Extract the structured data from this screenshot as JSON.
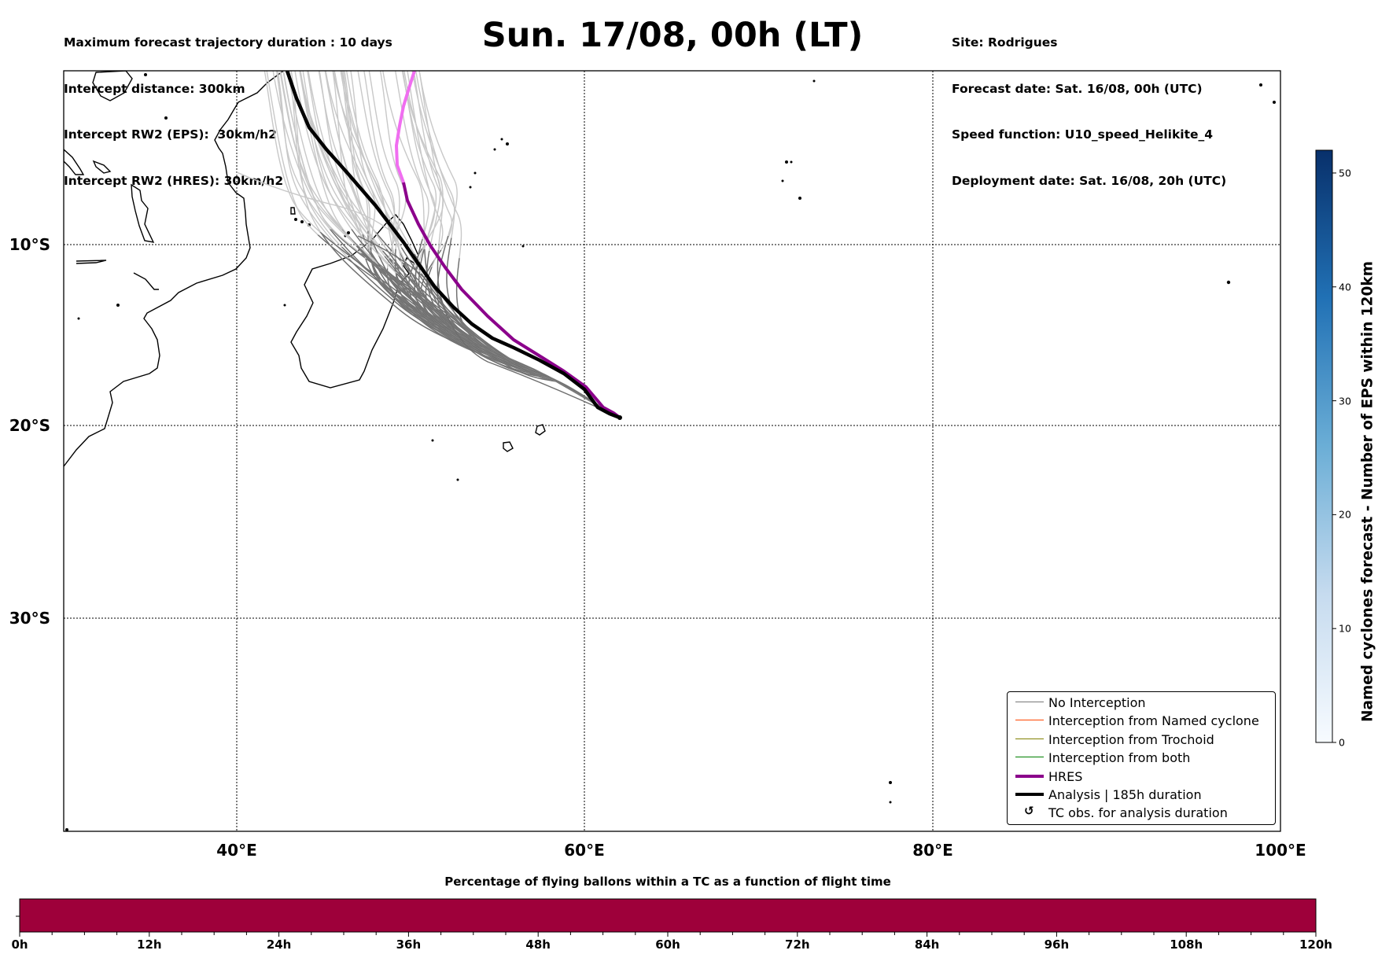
{
  "header": {
    "left": [
      "Maximum forecast trajectory duration : 10 days",
      "Intercept distance: 300km",
      "Intercept RW2 (EPS):  30km/h2",
      "Intercept RW2 (HRES): 30km/h2"
    ],
    "title": "Sun. 17/08, 00h (LT)",
    "right": [
      "Site: Rodrigues",
      "Forecast date: Sat. 16/08, 00h (UTC)",
      "Speed function: U10_speed_Helikite_4",
      "Deployment date: Sat. 16/08, 20h (UTC)"
    ]
  },
  "map": {
    "lat_labels": [
      "10°S",
      "20°S",
      "30°S"
    ],
    "lon_labels": [
      "40°E",
      "60°E",
      "80°E",
      "100°E"
    ]
  },
  "legend": [
    {
      "label": "No Interception",
      "color": "#777777",
      "kind": "thin"
    },
    {
      "label": "Interception from Named cyclone",
      "color": "#ff4500",
      "kind": "thin"
    },
    {
      "label": "Interception from Trochoid",
      "color": "#808000",
      "kind": "thin"
    },
    {
      "label": "Interception from both",
      "color": "#008000",
      "kind": "thin"
    },
    {
      "label": "HRES",
      "color": "#8b008b",
      "kind": "thick"
    },
    {
      "label": "Analysis | 185h duration",
      "color": "#000000",
      "kind": "thick"
    },
    {
      "label": "TC obs. for analysis duration",
      "color": "#000000",
      "kind": "symbol",
      "symbol": "↺"
    }
  ],
  "colorbar": {
    "label": "Named cyclones forecast - Number of EPS within 120km",
    "ticks": [
      "0",
      "10",
      "20",
      "30",
      "40",
      "50"
    ],
    "range": [
      0,
      52
    ],
    "color_low": "#f7fbff",
    "color_high": "#08306b"
  },
  "flight_bar": {
    "title": "Percentage of flying ballons within a TC as a function of flight time",
    "ticks": [
      "0h",
      "12h",
      "24h",
      "36h",
      "48h",
      "60h",
      "72h",
      "84h",
      "96h",
      "108h",
      "120h"
    ],
    "fill_color": "#9e003a"
  },
  "colors": {
    "hres_early": "#f06ef0",
    "hres": "#8b008b",
    "analysis": "#000000",
    "ens_old": "#c8c8c8",
    "ens_recent": "#6e6e6e"
  }
}
